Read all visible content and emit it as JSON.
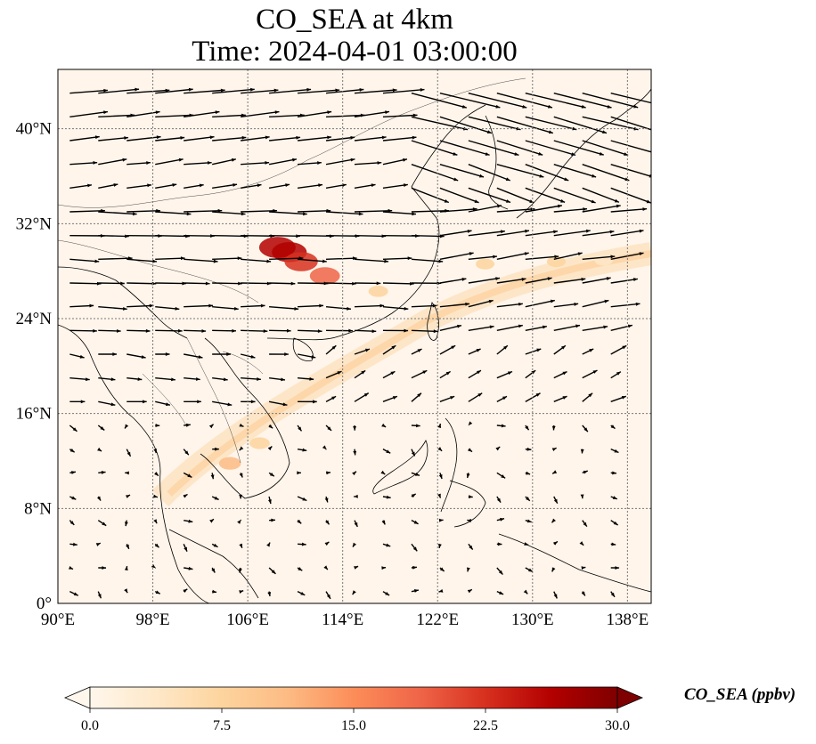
{
  "title": {
    "line1": "CO_SEA at 4km",
    "line2": "Time: 2024-04-01 03:00:00"
  },
  "map": {
    "lon_range": [
      90,
      140
    ],
    "lat_range": [
      0,
      45
    ],
    "lon_ticks": [
      {
        "value": 90,
        "label": "90°E"
      },
      {
        "value": 98,
        "label": "98°E"
      },
      {
        "value": 106,
        "label": "106°E"
      },
      {
        "value": 114,
        "label": "114°E"
      },
      {
        "value": 122,
        "label": "122°E"
      },
      {
        "value": 130,
        "label": "130°E"
      },
      {
        "value": 138,
        "label": "138°E"
      }
    ],
    "lat_ticks": [
      {
        "value": 0,
        "label": "0°"
      },
      {
        "value": 8,
        "label": "8°N"
      },
      {
        "value": 16,
        "label": "16°N"
      },
      {
        "value": 24,
        "label": "24°N"
      },
      {
        "value": 32,
        "label": "32°N"
      },
      {
        "value": 40,
        "label": "40°N"
      }
    ],
    "gridlines": true,
    "background_color": "#fff5eb",
    "plumes": [
      {
        "lon": 108.5,
        "lat": 30.0,
        "value": 28
      },
      {
        "lon": 109.5,
        "lat": 29.6,
        "value": 26
      },
      {
        "lon": 110.5,
        "lat": 28.8,
        "value": 24
      },
      {
        "lon": 112.5,
        "lat": 27.6,
        "value": 20
      },
      {
        "lon": 104.5,
        "lat": 11.8,
        "value": 10
      },
      {
        "lon": 107.0,
        "lat": 13.5,
        "value": 8
      },
      {
        "lon": 117.0,
        "lat": 26.3,
        "value": 7
      },
      {
        "lon": 126.0,
        "lat": 28.6,
        "value": 6
      },
      {
        "lon": 132.0,
        "lat": 28.8,
        "value": 6
      },
      {
        "lon": 136.0,
        "lat": 28.9,
        "value": 5
      }
    ]
  },
  "colorbar": {
    "label": "CO_SEA (ppbv)",
    "ticks": [
      "0.0",
      "7.5",
      "15.0",
      "22.5",
      "30.0"
    ],
    "range": [
      0,
      30
    ],
    "colormap": "OrRd",
    "colors": [
      "#fff7ec",
      "#fee8c8",
      "#fdd49e",
      "#fdbb84",
      "#fc8d59",
      "#ef6548",
      "#d7301f",
      "#b30000",
      "#7f0000"
    ]
  }
}
